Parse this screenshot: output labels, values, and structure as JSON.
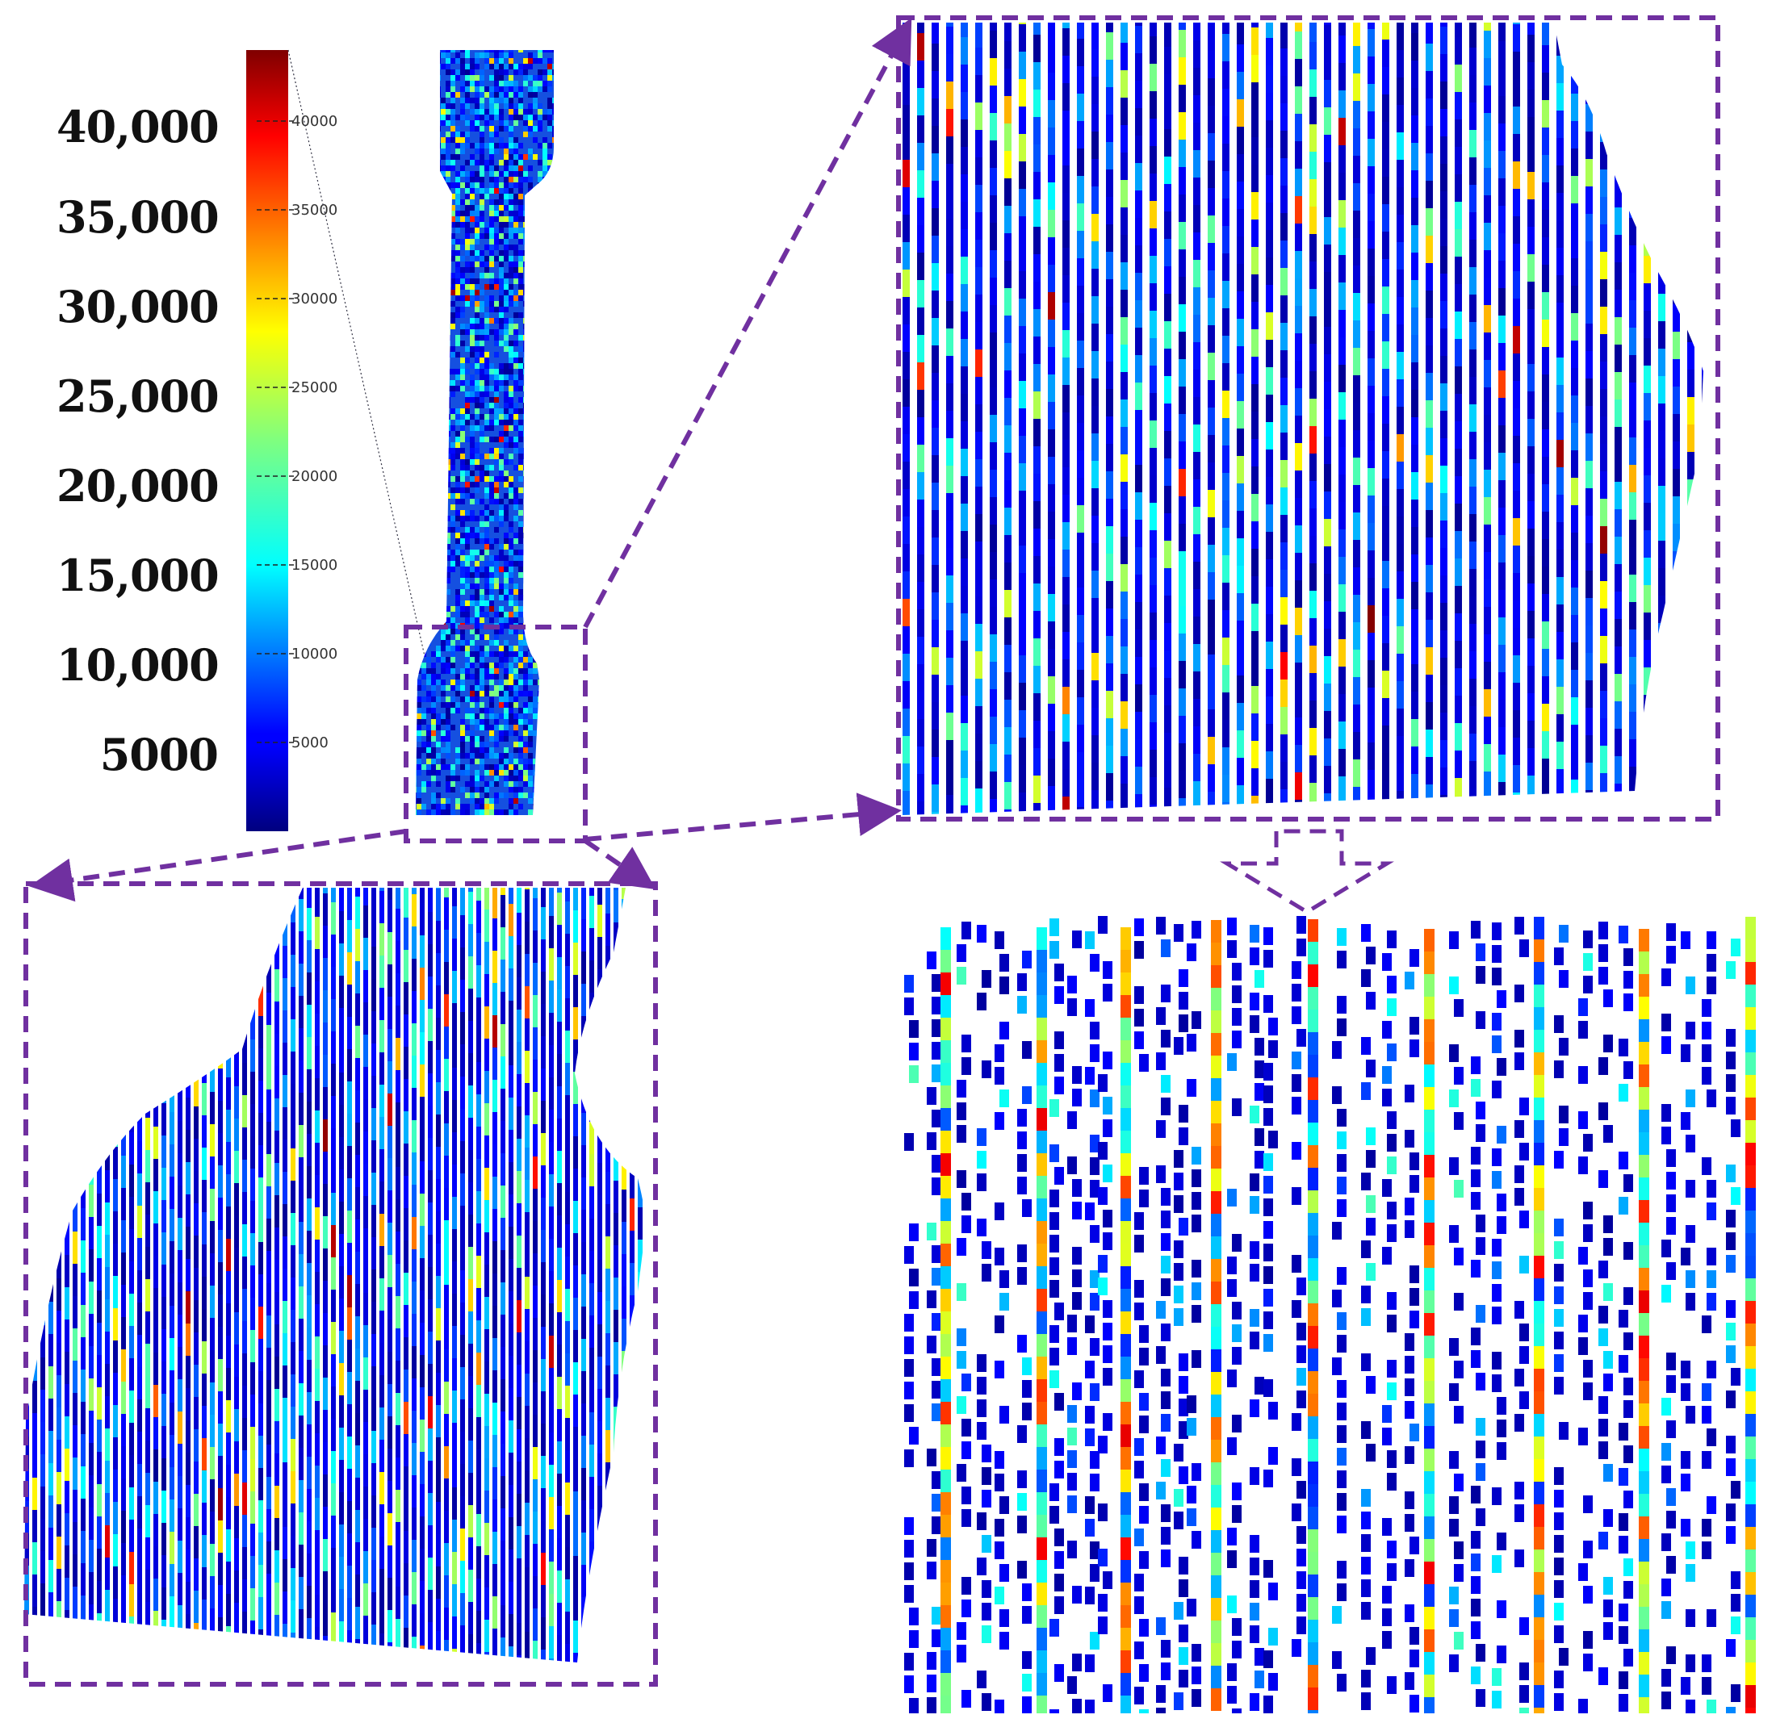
{
  "colorbar": {
    "outer_labels": [
      "40,000",
      "35,000",
      "30,000",
      "25,000",
      "20,000",
      "15,000",
      "10,000",
      "5000"
    ],
    "tick_labels": [
      "40000",
      "35000",
      "30000",
      "25000",
      "20000",
      "15000",
      "10000",
      "5000"
    ],
    "tick_values": [
      40000,
      35000,
      30000,
      25000,
      20000,
      15000,
      10000,
      5000
    ],
    "range": [
      0,
      44000
    ],
    "colormap": "jet"
  },
  "style": {
    "frame_color": "#7030a0",
    "background": "#ffffff"
  },
  "panels": {
    "specimen": "full dog-bone specimen stress map",
    "zoom_bottom_left": "region near neck (magnified)",
    "zoom_top_right": "further magnified region",
    "zoom_bottom_right": "individual filament tracks"
  }
}
